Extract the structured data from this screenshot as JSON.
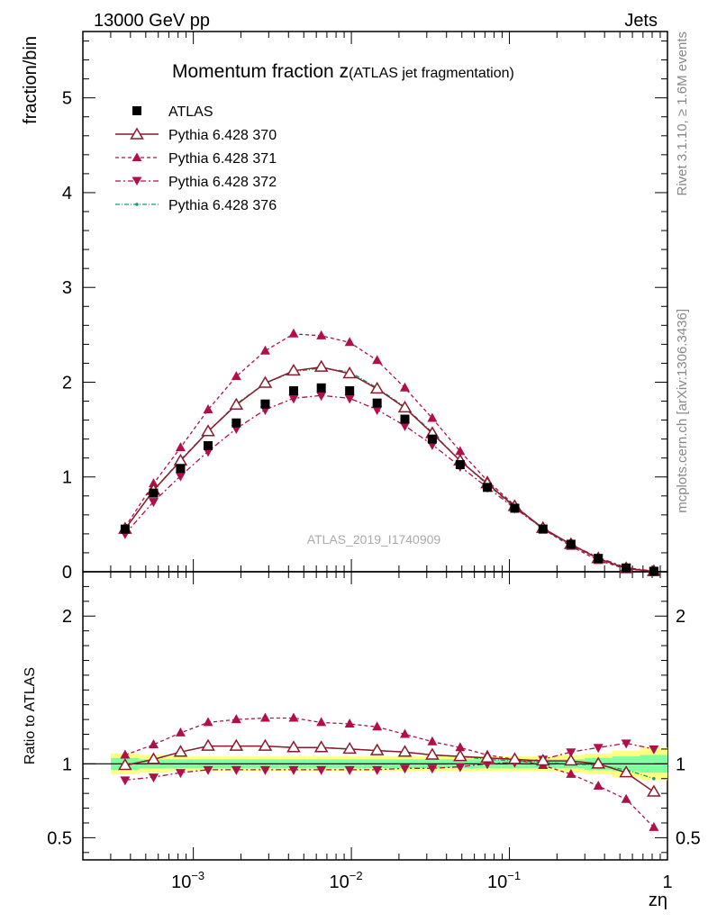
{
  "header": {
    "energy_label": "13000 GeV pp",
    "process_label": "Jets"
  },
  "side_text": {
    "rivet": "Rivet 3.1.10, ≥ 1.6M events",
    "mcplots": "mcplots.cern.ch [arXiv:1306.3436]"
  },
  "colors": {
    "atlas": "#000000",
    "p370": "#8b1a2b",
    "p371": "#b0104a",
    "p372": "#b0104a",
    "p376": "#1a9a6a",
    "band_yellow": "#ffff80",
    "band_green": "#80ffa0"
  },
  "chart_data": [
    {
      "type": "scatter",
      "title_main": "Momentum fraction ",
      "title_var": "z",
      "title_sub": "(ATLAS jet fragmentation)",
      "watermark": "ATLAS_2019_I1740909",
      "ylabel": "fraction/bin",
      "xscale": "log",
      "xlim": [
        0.0002,
        1
      ],
      "ylim": [
        0,
        5.7
      ],
      "y_ticks": [
        0,
        1,
        2,
        3,
        4,
        5
      ],
      "y_tick_labels": [
        "0",
        "1",
        "2",
        "3",
        "4",
        "5"
      ],
      "legend_position": "top-left",
      "x": [
        0.00037,
        0.00056,
        0.00083,
        0.00124,
        0.00187,
        0.00285,
        0.00431,
        0.00645,
        0.00975,
        0.01455,
        0.0218,
        0.0325,
        0.0488,
        0.0725,
        0.108,
        0.163,
        0.245,
        0.365,
        0.548,
        0.82
      ],
      "series": [
        {
          "name": "ATLAS",
          "values": [
            0.45,
            0.83,
            1.09,
            1.33,
            1.57,
            1.77,
            1.91,
            1.94,
            1.91,
            1.78,
            1.61,
            1.4,
            1.13,
            0.89,
            0.67,
            0.45,
            0.29,
            0.14,
            0.04,
            0.005
          ]
        },
        {
          "name": "Pythia 6.428 370",
          "values": [
            0.45,
            0.86,
            1.17,
            1.48,
            1.76,
            1.99,
            2.12,
            2.16,
            2.09,
            1.93,
            1.73,
            1.46,
            1.17,
            0.93,
            0.69,
            0.46,
            0.29,
            0.14,
            0.035,
            0.004
          ]
        },
        {
          "name": "Pythia 6.428 371",
          "values": [
            0.47,
            0.93,
            1.31,
            1.71,
            2.06,
            2.33,
            2.51,
            2.49,
            2.42,
            2.23,
            1.94,
            1.62,
            1.27,
            0.96,
            0.7,
            0.45,
            0.27,
            0.12,
            0.03,
            0.003
          ]
        },
        {
          "name": "Pythia 6.428 372",
          "values": [
            0.4,
            0.74,
            1.01,
            1.27,
            1.51,
            1.71,
            1.83,
            1.86,
            1.83,
            1.71,
            1.54,
            1.34,
            1.11,
            0.89,
            0.67,
            0.46,
            0.29,
            0.15,
            0.045,
            0.006
          ]
        },
        {
          "name": "Pythia 6.428 376",
          "values": [
            0.45,
            0.86,
            1.18,
            1.48,
            1.77,
            1.99,
            2.11,
            2.15,
            2.11,
            1.94,
            1.74,
            1.47,
            1.17,
            0.92,
            0.68,
            0.45,
            0.28,
            0.14,
            0.035,
            0.005
          ]
        }
      ]
    },
    {
      "type": "line",
      "ylabel": "Ratio to ATLAS",
      "xlabel": "zη",
      "xscale": "log",
      "xlim": [
        0.0002,
        1
      ],
      "ylim": [
        0.35,
        2.3
      ],
      "y_ticks": [
        0.5,
        1,
        2
      ],
      "y_tick_labels": [
        "0.5",
        "1",
        "2"
      ],
      "x_tick_labels": [
        "10",
        "10",
        "10",
        "1"
      ],
      "x_tick_exponents": [
        "−3",
        "−2",
        "−1",
        ""
      ],
      "x_tick_values": [
        0.001,
        0.01,
        0.1,
        1
      ],
      "band_green_halfwidth": [
        0.04,
        0.03,
        0.03,
        0.03,
        0.03,
        0.03,
        0.03,
        0.03,
        0.03,
        0.03,
        0.03,
        0.03,
        0.03,
        0.03,
        0.03,
        0.03,
        0.03,
        0.04,
        0.05,
        0.06
      ],
      "band_yellow_halfwidth": [
        0.07,
        0.06,
        0.05,
        0.05,
        0.05,
        0.05,
        0.05,
        0.05,
        0.05,
        0.05,
        0.05,
        0.05,
        0.05,
        0.05,
        0.05,
        0.05,
        0.06,
        0.07,
        0.09,
        0.11
      ],
      "series": [
        {
          "name": "Pythia 6.428 370",
          "values": [
            0.99,
            1.03,
            1.08,
            1.12,
            1.12,
            1.12,
            1.11,
            1.11,
            1.1,
            1.09,
            1.08,
            1.06,
            1.05,
            1.04,
            1.03,
            1.02,
            1.02,
            1.0,
            0.94,
            0.81
          ]
        },
        {
          "name": "Pythia 6.428 371",
          "values": [
            1.06,
            1.13,
            1.21,
            1.28,
            1.3,
            1.31,
            1.31,
            1.28,
            1.27,
            1.25,
            1.2,
            1.15,
            1.11,
            1.06,
            1.03,
            0.99,
            0.93,
            0.85,
            0.76,
            0.57
          ]
        },
        {
          "name": "Pythia 6.428 372",
          "values": [
            0.89,
            0.91,
            0.94,
            0.96,
            0.96,
            0.96,
            0.96,
            0.96,
            0.96,
            0.96,
            0.97,
            0.97,
            0.98,
            1.0,
            1.01,
            1.03,
            1.08,
            1.11,
            1.14,
            1.1
          ]
        },
        {
          "name": "Pythia 6.428 376",
          "values": [
            0.99,
            1.03,
            1.08,
            1.12,
            1.12,
            1.12,
            1.11,
            1.11,
            1.1,
            1.09,
            1.08,
            1.06,
            1.05,
            1.03,
            1.02,
            1.01,
            1.0,
            0.99,
            0.96,
            0.9
          ]
        }
      ]
    }
  ]
}
